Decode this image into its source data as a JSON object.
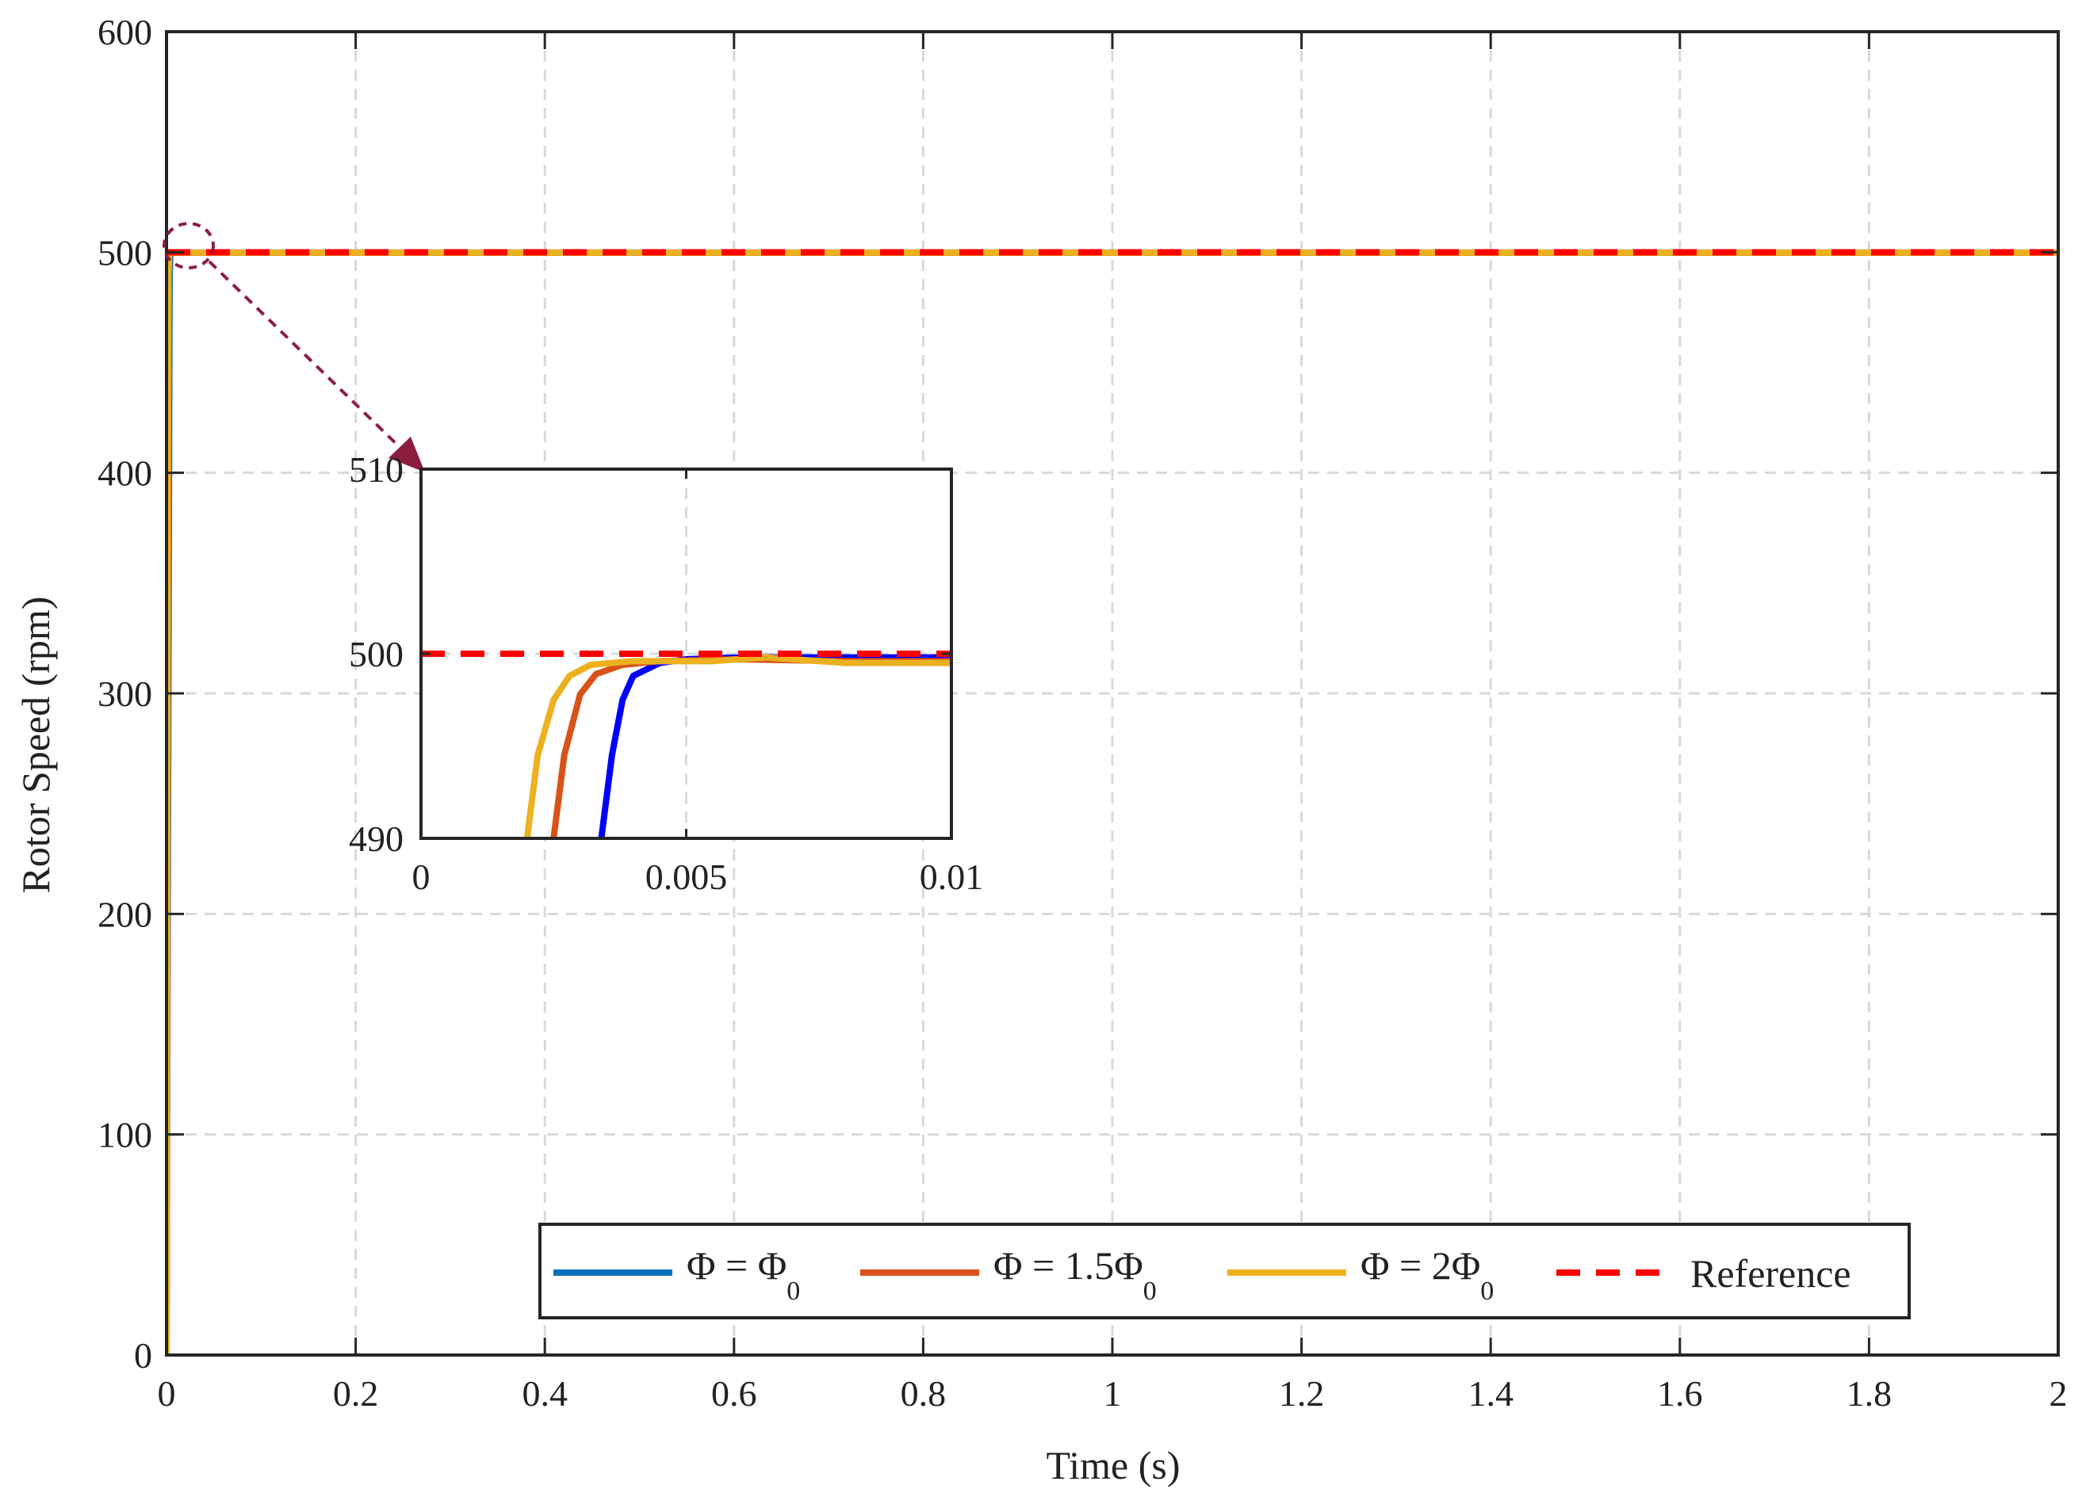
{
  "chart_data": [
    {
      "type": "line",
      "xlabel": "Time (s)",
      "ylabel": "Rotor Speed (rpm)",
      "xlim": [
        0,
        2
      ],
      "ylim": [
        0,
        600
      ],
      "xticks": [
        0,
        0.2,
        0.4,
        0.6,
        0.8,
        1,
        1.2,
        1.4,
        1.6,
        1.8,
        2
      ],
      "xtick_labels": [
        "0",
        "0.2",
        "0.4",
        "0.6",
        "0.8",
        "1",
        "1.2",
        "1.4",
        "1.6",
        "1.8",
        "2"
      ],
      "yticks": [
        0,
        100,
        200,
        300,
        400,
        500,
        600
      ],
      "ytick_labels": [
        "0",
        "100",
        "200",
        "300",
        "400",
        "500",
        "600"
      ],
      "grid": true,
      "legend_position": "bottom-right",
      "series": [
        {
          "name": "Φ = Φ",
          "name_subscript": "0",
          "color": "#0072BD",
          "style": "solid",
          "x": [
            0,
            0.001,
            0.002,
            0.003,
            0.0034,
            0.004,
            0.005,
            2
          ],
          "y": [
            0,
            150,
            300,
            450,
            490,
            498.5,
            499.8,
            499.8
          ]
        },
        {
          "name": "Φ = 1.5Φ",
          "name_subscript": "0",
          "color": "#D95319",
          "style": "solid",
          "x": [
            0,
            0.0008,
            0.0016,
            0.0024,
            0.003,
            0.004,
            2
          ],
          "y": [
            0,
            200,
            380,
            490,
            498.5,
            499.8,
            499.8
          ]
        },
        {
          "name": "Φ = 2Φ",
          "name_subscript": "0",
          "color": "#EDB120",
          "style": "solid",
          "x": [
            0,
            0.0007,
            0.0014,
            0.002,
            0.0027,
            0.0035,
            2
          ],
          "y": [
            0,
            220,
            420,
            490,
            498.5,
            499.8,
            499.8
          ]
        },
        {
          "name": "Reference",
          "color": "#FF0000",
          "style": "dashed",
          "x": [
            0,
            2
          ],
          "y": [
            500,
            500
          ]
        }
      ]
    },
    {
      "type": "line",
      "role": "inset-zoom",
      "xlim": [
        0,
        0.01
      ],
      "ylim": [
        490,
        510
      ],
      "xticks": [
        0,
        0.005,
        0.01
      ],
      "xtick_labels": [
        "0",
        "0.005",
        "0.01"
      ],
      "yticks": [
        490,
        500,
        510
      ],
      "ytick_labels": [
        "490",
        "500",
        "510"
      ],
      "grid": true,
      "series": [
        {
          "color": "#0000FF",
          "style": "solid",
          "x": [
            0.0034,
            0.0036,
            0.0038,
            0.004,
            0.0045,
            0.005,
            0.006,
            0.008,
            0.01
          ],
          "y": [
            490,
            494.5,
            497.5,
            498.8,
            499.5,
            499.7,
            499.8,
            499.8,
            499.8
          ]
        },
        {
          "color": "#D95319",
          "style": "solid",
          "x": [
            0.0025,
            0.0027,
            0.003,
            0.0033,
            0.0038,
            0.0045,
            0.006,
            0.008,
            0.01
          ],
          "y": [
            490,
            494.5,
            497.8,
            498.9,
            499.4,
            499.6,
            499.7,
            499.6,
            499.6
          ]
        },
        {
          "color": "#EDB120",
          "style": "solid",
          "x": [
            0.002,
            0.0022,
            0.0025,
            0.0028,
            0.0032,
            0.004,
            0.0055,
            0.0065,
            0.008,
            0.01
          ],
          "y": [
            490,
            494.5,
            497.5,
            498.8,
            499.4,
            499.6,
            499.6,
            499.8,
            499.5,
            499.5
          ]
        },
        {
          "color": "#FF0000",
          "style": "dashed",
          "x": [
            0,
            0.01
          ],
          "y": [
            500,
            500
          ]
        }
      ]
    }
  ]
}
